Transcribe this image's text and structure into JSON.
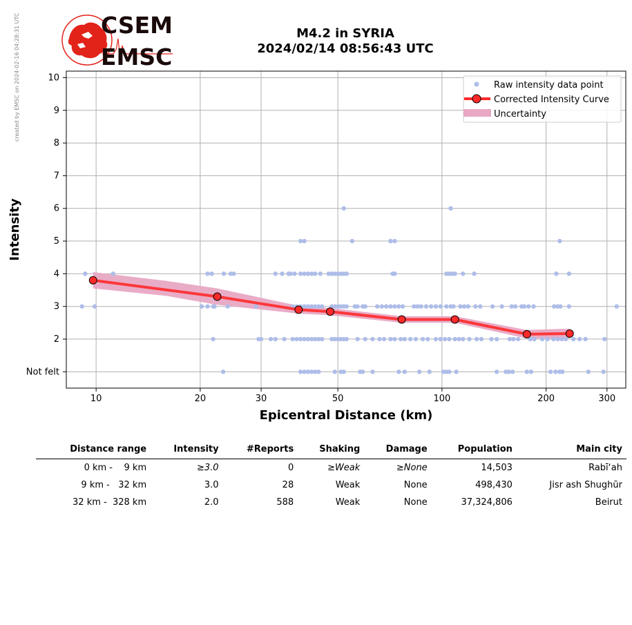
{
  "watermark": "created by EMSC on 2024-02-16 04:28:31 UTC",
  "logo": {
    "line1": "CSEM",
    "line2": "EMSC"
  },
  "title": {
    "line1": "M4.2 in SYRIA",
    "line2": "2024/02/14 08:56:43 UTC"
  },
  "colors": {
    "raw": "#aebde8",
    "curve": "#ff2a2a",
    "uncertainty": "#e8a8c4",
    "logo_red": "#e2231a",
    "logo_dark": "#1a0a0a"
  },
  "chart_data": {
    "type": "scatter",
    "xlabel": "Epicentral Distance (km)",
    "ylabel": "Intensity",
    "x_scale": "log",
    "xlim": [
      8.2,
      340
    ],
    "ylim": [
      0.5,
      10.2
    ],
    "xticks": [
      10,
      20,
      30,
      50,
      100,
      200,
      300
    ],
    "xtick_labels": [
      "10",
      "20",
      "30",
      "50",
      "100",
      "200",
      "300"
    ],
    "yticks": [
      1,
      2,
      3,
      4,
      5,
      6,
      7,
      8,
      9,
      10
    ],
    "ytick_labels": [
      "Not felt",
      "2",
      "3",
      "4",
      "5",
      "6",
      "7",
      "8",
      "9",
      "10"
    ],
    "grid": true,
    "legend": {
      "placement": "top-right",
      "entries": [
        "Raw intensity data point",
        "Corrected Intensity Curve",
        "Uncertainty"
      ]
    },
    "series": [
      {
        "name": "Raw intensity data point",
        "points": [
          [
            9.3,
            4
          ],
          [
            11.2,
            4
          ],
          [
            21,
            4
          ],
          [
            21.6,
            4
          ],
          [
            23.4,
            4
          ],
          [
            24.5,
            4
          ],
          [
            25,
            4
          ],
          [
            33,
            4
          ],
          [
            34.5,
            4
          ],
          [
            36,
            4
          ],
          [
            36.5,
            4
          ],
          [
            37.5,
            4
          ],
          [
            39,
            4
          ],
          [
            40,
            4
          ],
          [
            41,
            4
          ],
          [
            42,
            4
          ],
          [
            43,
            4
          ],
          [
            44.5,
            4
          ],
          [
            47,
            4
          ],
          [
            48,
            4
          ],
          [
            49,
            4
          ],
          [
            50,
            4
          ],
          [
            51,
            4
          ],
          [
            52,
            4
          ],
          [
            53,
            4
          ],
          [
            72,
            4
          ],
          [
            73,
            4
          ],
          [
            103,
            4
          ],
          [
            105,
            4
          ],
          [
            107,
            4
          ],
          [
            109,
            4
          ],
          [
            115,
            4
          ],
          [
            124,
            4
          ],
          [
            214,
            4
          ],
          [
            233,
            4
          ],
          [
            9.1,
            3
          ],
          [
            9.9,
            3
          ],
          [
            20.2,
            3
          ],
          [
            21,
            3
          ],
          [
            21.8,
            3
          ],
          [
            22,
            3
          ],
          [
            24,
            3
          ],
          [
            29,
            3
          ],
          [
            37,
            3
          ],
          [
            38,
            3
          ],
          [
            39,
            3
          ],
          [
            40,
            3
          ],
          [
            41,
            3
          ],
          [
            42,
            3
          ],
          [
            43,
            3
          ],
          [
            44,
            3
          ],
          [
            45,
            3
          ],
          [
            48,
            3
          ],
          [
            49,
            3
          ],
          [
            50,
            3
          ],
          [
            51,
            3
          ],
          [
            52,
            3
          ],
          [
            53,
            3
          ],
          [
            56,
            3
          ],
          [
            57,
            3
          ],
          [
            59,
            3
          ],
          [
            60,
            3
          ],
          [
            65,
            3
          ],
          [
            67,
            3
          ],
          [
            69,
            3
          ],
          [
            71,
            3
          ],
          [
            73,
            3
          ],
          [
            75,
            3
          ],
          [
            77,
            3
          ],
          [
            83,
            3
          ],
          [
            85,
            3
          ],
          [
            87,
            3
          ],
          [
            90,
            3
          ],
          [
            93,
            3
          ],
          [
            96,
            3
          ],
          [
            99,
            3
          ],
          [
            103,
            3
          ],
          [
            106,
            3
          ],
          [
            108,
            3
          ],
          [
            113,
            3
          ],
          [
            116,
            3
          ],
          [
            119,
            3
          ],
          [
            125,
            3
          ],
          [
            129,
            3
          ],
          [
            140,
            3
          ],
          [
            149,
            3
          ],
          [
            159,
            3
          ],
          [
            163,
            3
          ],
          [
            170,
            3
          ],
          [
            173,
            3
          ],
          [
            178,
            3
          ],
          [
            184,
            3
          ],
          [
            211,
            3
          ],
          [
            216,
            3
          ],
          [
            220,
            3
          ],
          [
            233,
            3
          ],
          [
            320,
            3
          ],
          [
            21.8,
            2
          ],
          [
            29.5,
            2
          ],
          [
            30,
            2
          ],
          [
            32,
            2
          ],
          [
            33,
            2
          ],
          [
            35,
            2
          ],
          [
            37,
            2
          ],
          [
            38,
            2
          ],
          [
            39,
            2
          ],
          [
            40,
            2
          ],
          [
            41,
            2
          ],
          [
            42,
            2
          ],
          [
            43,
            2
          ],
          [
            44,
            2
          ],
          [
            45,
            2
          ],
          [
            48,
            2
          ],
          [
            49,
            2
          ],
          [
            50,
            2
          ],
          [
            51,
            2
          ],
          [
            52,
            2
          ],
          [
            53,
            2
          ],
          [
            57,
            2
          ],
          [
            60,
            2
          ],
          [
            63,
            2
          ],
          [
            66,
            2
          ],
          [
            68,
            2
          ],
          [
            71,
            2
          ],
          [
            73,
            2
          ],
          [
            76,
            2
          ],
          [
            78,
            2
          ],
          [
            81,
            2
          ],
          [
            84,
            2
          ],
          [
            88,
            2
          ],
          [
            91,
            2
          ],
          [
            96,
            2
          ],
          [
            99,
            2
          ],
          [
            102,
            2
          ],
          [
            105,
            2
          ],
          [
            109,
            2
          ],
          [
            112,
            2
          ],
          [
            115,
            2
          ],
          [
            120,
            2
          ],
          [
            126,
            2
          ],
          [
            130,
            2
          ],
          [
            139,
            2
          ],
          [
            144,
            2
          ],
          [
            157,
            2
          ],
          [
            161,
            2
          ],
          [
            166,
            2
          ],
          [
            180,
            2
          ],
          [
            185,
            2
          ],
          [
            195,
            2
          ],
          [
            202,
            2
          ],
          [
            210,
            2
          ],
          [
            216,
            2
          ],
          [
            222,
            2
          ],
          [
            228,
            2
          ],
          [
            240,
            2
          ],
          [
            250,
            2
          ],
          [
            260,
            2
          ],
          [
            295,
            2
          ],
          [
            23.3,
            1
          ],
          [
            39,
            1
          ],
          [
            40,
            1
          ],
          [
            41,
            1
          ],
          [
            42,
            1
          ],
          [
            43,
            1
          ],
          [
            44,
            1
          ],
          [
            49,
            1
          ],
          [
            51,
            1
          ],
          [
            52,
            1
          ],
          [
            58,
            1
          ],
          [
            59,
            1
          ],
          [
            63,
            1
          ],
          [
            75,
            1
          ],
          [
            78,
            1
          ],
          [
            86,
            1
          ],
          [
            92,
            1
          ],
          [
            101,
            1
          ],
          [
            103,
            1
          ],
          [
            105,
            1
          ],
          [
            110,
            1
          ],
          [
            144,
            1
          ],
          [
            153,
            1
          ],
          [
            156,
            1
          ],
          [
            160,
            1
          ],
          [
            176,
            1
          ],
          [
            181,
            1
          ],
          [
            206,
            1
          ],
          [
            213,
            1
          ],
          [
            219,
            1
          ],
          [
            223,
            1
          ],
          [
            265,
            1
          ],
          [
            293,
            1
          ],
          [
            39,
            5
          ],
          [
            40,
            5
          ],
          [
            55,
            5
          ],
          [
            71,
            5
          ],
          [
            73,
            5
          ],
          [
            219,
            5
          ],
          [
            52,
            6
          ],
          [
            106,
            6
          ]
        ]
      },
      {
        "name": "Corrected Intensity Curve",
        "points": [
          [
            9.8,
            3.8
          ],
          [
            22.4,
            3.3
          ],
          [
            38.5,
            2.9
          ],
          [
            47.5,
            2.84
          ],
          [
            76.5,
            2.6
          ],
          [
            109,
            2.6
          ],
          [
            176,
            2.15
          ],
          [
            234,
            2.17
          ]
        ]
      },
      {
        "name": "Uncertainty",
        "upper": [
          [
            9.8,
            4.05
          ],
          [
            16,
            3.78
          ],
          [
            22.4,
            3.55
          ],
          [
            38.5,
            3.02
          ],
          [
            47.5,
            2.95
          ],
          [
            76.5,
            2.7
          ],
          [
            109,
            2.7
          ],
          [
            176,
            2.28
          ],
          [
            234,
            2.32
          ]
        ],
        "lower": [
          [
            9.8,
            3.55
          ],
          [
            16,
            3.32
          ],
          [
            22.4,
            3.05
          ],
          [
            38.5,
            2.78
          ],
          [
            47.5,
            2.73
          ],
          [
            76.5,
            2.5
          ],
          [
            109,
            2.5
          ],
          [
            176,
            2.02
          ],
          [
            234,
            2.02
          ]
        ]
      }
    ]
  },
  "table": {
    "headers": [
      "Distance range",
      "Intensity",
      "#Reports",
      "Shaking",
      "Damage",
      "Population",
      "Main city"
    ],
    "rows": [
      [
        "0 km -    9 km",
        "≥3.0",
        "0",
        "≥Weak",
        "≥None",
        "14,503",
        "Rabīʻah"
      ],
      [
        "9 km -   32 km",
        "3.0",
        "28",
        "Weak",
        "None",
        "498,430",
        "Jisr ash Shughūr"
      ],
      [
        "32 km -  328 km",
        "2.0",
        "588",
        "Weak",
        "None",
        "37,324,806",
        "Beirut"
      ]
    ]
  }
}
